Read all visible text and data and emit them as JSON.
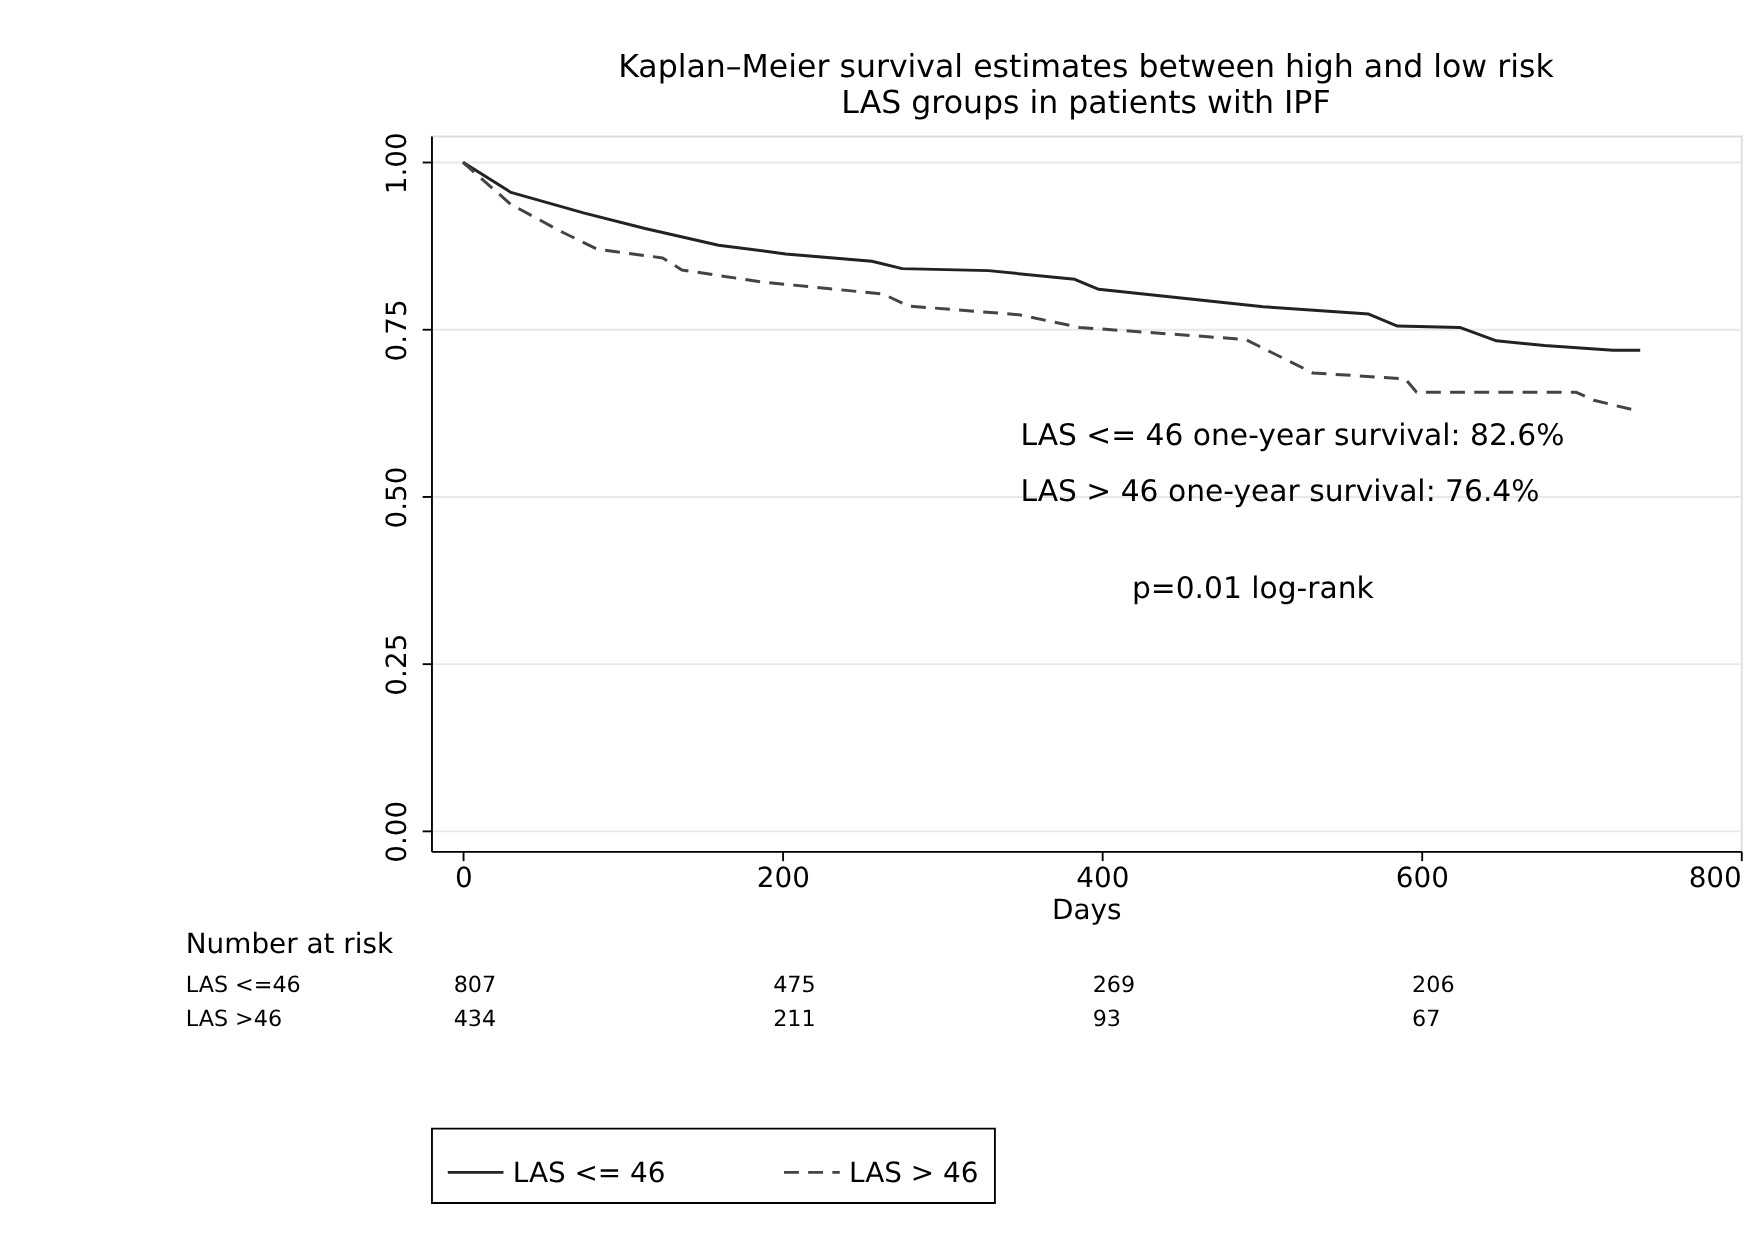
{
  "chart_data": {
    "type": "line",
    "title": [
      "Kaplan–Meier survival estimates between high and low risk",
      "LAS groups in patients with IPF"
    ],
    "xlabel": "Days",
    "xlim": [
      -20,
      800
    ],
    "xticks": [
      0,
      200,
      400,
      600,
      800
    ],
    "ylim": [
      -0.03,
      1.04
    ],
    "yticks": [
      {
        "value": 0,
        "label": "0.00"
      },
      {
        "value": 0.25,
        "label": "0.25"
      },
      {
        "value": 0.5,
        "label": "0.50"
      },
      {
        "value": 0.75,
        "label": "0.75"
      },
      {
        "value": 1,
        "label": "1.00"
      }
    ],
    "grid": "y",
    "legend": "bottom",
    "marker": "none",
    "series": [
      {
        "name": "LAS <= 46",
        "color": "#222222",
        "line_style": "solid",
        "x": [
          0,
          30,
          76,
          114,
          160,
          202,
          256,
          275,
          329,
          383,
          398,
          501,
          567,
          585,
          624,
          647,
          677,
          720,
          737
        ],
        "values": [
          1.0,
          0.955,
          0.924,
          0.901,
          0.876,
          0.863,
          0.852,
          0.841,
          0.838,
          0.825,
          0.81,
          0.784,
          0.773,
          0.755,
          0.753,
          0.733,
          0.726,
          0.719,
          0.719
        ]
      },
      {
        "name": "LAS > 46",
        "color": "#444444",
        "line_style": "dashed",
        "x": [
          0,
          30,
          61,
          84,
          125,
          137,
          187,
          263,
          279,
          348,
          386,
          490,
          505,
          532,
          590,
          597,
          697,
          708,
          734
        ],
        "values": [
          1.0,
          0.937,
          0.897,
          0.87,
          0.857,
          0.839,
          0.821,
          0.803,
          0.785,
          0.772,
          0.753,
          0.735,
          0.717,
          0.685,
          0.676,
          0.656,
          0.656,
          0.644,
          0.629
        ]
      }
    ],
    "annotations": [
      "LAS <= 46 one-year survival: 82.6%",
      "LAS > 46 one-year survival: 76.4%",
      "p=0.01 log-rank",
      "Number at risk",
      "LAS <=46",
      "807",
      "475",
      "269",
      "206",
      "LAS >46",
      "434",
      "211",
      "93",
      "67"
    ]
  }
}
